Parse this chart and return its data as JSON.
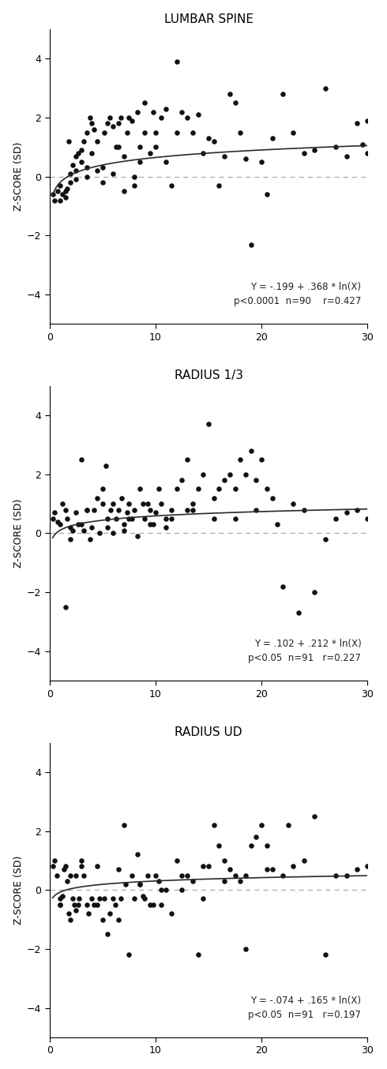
{
  "panels": [
    {
      "title": "LUMBAR SPINE",
      "equation": "Y = -.199 + .368 * ln(X)",
      "stats_line": "p<0.0001  n=90    r=0.427",
      "a": -0.199,
      "b": 0.368,
      "scatter_x": [
        0.3,
        0.5,
        0.8,
        1.0,
        1.0,
        1.2,
        1.5,
        1.5,
        1.7,
        2.0,
        2.0,
        2.2,
        2.5,
        2.5,
        2.7,
        3.0,
        3.0,
        3.2,
        3.5,
        3.5,
        3.8,
        4.0,
        4.0,
        4.2,
        4.5,
        4.5,
        5.0,
        5.0,
        5.2,
        5.5,
        5.7,
        6.0,
        6.0,
        6.3,
        6.5,
        6.7,
        7.0,
        7.0,
        7.3,
        7.5,
        7.8,
        8.0,
        8.0,
        8.3,
        8.5,
        9.0,
        9.0,
        9.5,
        9.8,
        10.0,
        10.0,
        10.5,
        11.0,
        11.0,
        11.5,
        12.0,
        12.0,
        12.5,
        13.0,
        13.5,
        14.0,
        14.5,
        15.0,
        15.5,
        16.0,
        16.5,
        17.0,
        17.5,
        18.0,
        18.5,
        19.0,
        20.0,
        20.5,
        21.0,
        22.0,
        23.0,
        24.0,
        25.0,
        26.0,
        27.0,
        28.0,
        29.0,
        29.5,
        30.0,
        30.0,
        2.5,
        3.5,
        6.5,
        8.5,
        1.8
      ],
      "scatter_y": [
        -0.6,
        -0.8,
        -0.5,
        -0.8,
        -0.3,
        -0.6,
        -0.7,
        -0.5,
        -0.4,
        -0.2,
        0.1,
        0.4,
        0.2,
        0.7,
        0.8,
        0.5,
        0.9,
        1.2,
        0.3,
        1.5,
        2.0,
        0.8,
        1.8,
        1.6,
        1.2,
        0.2,
        -0.2,
        0.3,
        1.5,
        1.8,
        2.0,
        1.7,
        0.1,
        1.0,
        1.8,
        2.0,
        -0.5,
        0.7,
        1.5,
        2.0,
        1.9,
        0.0,
        -0.3,
        2.2,
        1.0,
        1.5,
        2.5,
        0.8,
        2.2,
        1.5,
        1.0,
        2.0,
        2.3,
        0.5,
        -0.3,
        1.5,
        3.9,
        2.2,
        2.0,
        1.5,
        2.1,
        0.8,
        1.3,
        1.2,
        -0.3,
        0.7,
        2.8,
        2.5,
        1.5,
        0.6,
        -2.3,
        0.5,
        -0.6,
        1.3,
        2.8,
        1.5,
        0.8,
        0.9,
        3.0,
        1.0,
        0.7,
        1.8,
        1.1,
        0.8,
        1.9,
        -0.1,
        0.0,
        1.0,
        0.5,
        1.2
      ]
    },
    {
      "title": "RADIUS 1/3",
      "equation": "Y = .102 + .212 * ln(X)",
      "stats_line": "p<0.05  n=91   r=0.227",
      "a": 0.102,
      "b": 0.212,
      "scatter_x": [
        0.3,
        0.5,
        0.8,
        1.0,
        1.2,
        1.5,
        1.7,
        2.0,
        2.0,
        2.2,
        2.5,
        2.7,
        3.0,
        3.0,
        3.2,
        3.5,
        3.8,
        4.0,
        4.2,
        4.5,
        4.7,
        5.0,
        5.0,
        5.3,
        5.5,
        5.8,
        6.0,
        6.0,
        6.3,
        6.5,
        6.8,
        7.0,
        7.0,
        7.3,
        7.5,
        7.8,
        8.0,
        8.3,
        8.5,
        8.8,
        9.0,
        9.3,
        9.5,
        9.8,
        10.0,
        10.3,
        10.5,
        11.0,
        11.0,
        11.5,
        12.0,
        12.5,
        13.0,
        13.0,
        13.5,
        14.0,
        14.5,
        15.0,
        15.5,
        16.0,
        16.5,
        17.0,
        17.5,
        18.0,
        18.5,
        19.0,
        19.5,
        20.0,
        20.5,
        21.0,
        22.0,
        23.0,
        24.0,
        25.0,
        26.0,
        27.0,
        28.0,
        29.0,
        30.0,
        3.5,
        5.5,
        7.5,
        9.5,
        11.5,
        13.5,
        15.5,
        17.5,
        19.5,
        21.5,
        23.5,
        1.5
      ],
      "scatter_y": [
        0.5,
        0.7,
        0.4,
        0.3,
        1.0,
        0.8,
        0.5,
        0.2,
        -0.2,
        0.1,
        0.7,
        0.3,
        0.3,
        2.5,
        0.1,
        0.8,
        -0.2,
        0.2,
        0.8,
        1.2,
        0.0,
        1.0,
        1.5,
        2.3,
        0.5,
        0.8,
        1.0,
        0.0,
        0.5,
        0.8,
        1.2,
        0.3,
        0.1,
        0.7,
        1.0,
        0.5,
        0.8,
        -0.1,
        1.5,
        1.0,
        0.5,
        1.0,
        0.8,
        0.3,
        0.7,
        1.5,
        1.0,
        0.5,
        0.2,
        0.8,
        1.5,
        1.8,
        0.8,
        2.5,
        1.0,
        1.5,
        2.0,
        3.7,
        1.2,
        1.5,
        1.8,
        2.0,
        1.5,
        2.5,
        2.0,
        2.8,
        1.8,
        2.5,
        1.5,
        1.2,
        -1.8,
        1.0,
        0.8,
        -2.0,
        -0.2,
        0.5,
        0.7,
        0.8,
        0.5,
        0.8,
        0.2,
        0.5,
        0.3,
        0.5,
        0.8,
        0.5,
        0.5,
        0.8,
        0.3,
        -2.7,
        -2.5
      ]
    },
    {
      "title": "RADIUS UD",
      "equation": "Y = -.074 + .165 * ln(X)",
      "stats_line": "p<0.05  n=91   r=0.197",
      "a": -0.074,
      "b": 0.165,
      "scatter_x": [
        0.3,
        0.5,
        0.7,
        1.0,
        1.0,
        1.2,
        1.4,
        1.5,
        1.7,
        1.8,
        2.0,
        2.0,
        2.2,
        2.3,
        2.5,
        2.7,
        2.8,
        3.0,
        3.0,
        3.2,
        3.5,
        3.7,
        4.0,
        4.2,
        4.5,
        4.7,
        5.0,
        5.2,
        5.5,
        5.7,
        6.0,
        6.2,
        6.5,
        6.7,
        7.0,
        7.2,
        7.5,
        7.8,
        8.0,
        8.3,
        8.5,
        8.8,
        9.0,
        9.3,
        9.5,
        9.8,
        10.0,
        10.3,
        10.5,
        11.0,
        11.5,
        12.0,
        12.5,
        13.0,
        13.5,
        14.0,
        14.5,
        15.0,
        15.5,
        16.0,
        16.5,
        17.0,
        17.5,
        18.0,
        18.5,
        19.0,
        19.5,
        20.0,
        20.5,
        21.0,
        22.0,
        23.0,
        24.0,
        25.0,
        26.0,
        27.0,
        28.0,
        29.0,
        30.0,
        2.5,
        4.5,
        6.5,
        8.5,
        10.5,
        12.5,
        14.5,
        16.5,
        18.5,
        20.5,
        22.5,
        1.0
      ],
      "scatter_y": [
        0.8,
        1.0,
        0.5,
        -0.5,
        -0.3,
        -0.2,
        0.7,
        0.8,
        0.3,
        -0.8,
        -1.0,
        0.5,
        -0.3,
        -0.5,
        -0.7,
        -0.5,
        -0.3,
        1.0,
        0.8,
        0.5,
        -0.5,
        -0.8,
        -0.3,
        -0.5,
        -0.5,
        -0.3,
        -1.0,
        -0.3,
        -1.5,
        -0.8,
        -0.3,
        -0.5,
        -1.0,
        -0.3,
        2.2,
        0.2,
        -2.2,
        0.5,
        -0.3,
        1.2,
        0.2,
        -0.2,
        -0.3,
        0.5,
        -0.5,
        -0.5,
        0.5,
        0.3,
        -0.5,
        0.0,
        -0.8,
        1.0,
        0.0,
        0.5,
        0.3,
        -2.2,
        -0.3,
        0.8,
        2.2,
        1.5,
        1.0,
        0.7,
        0.5,
        0.3,
        -2.0,
        1.5,
        1.8,
        2.2,
        1.5,
        0.7,
        0.5,
        0.8,
        1.0,
        2.5,
        -2.2,
        0.5,
        0.5,
        0.7,
        0.8,
        0.5,
        0.8,
        0.7,
        0.2,
        0.0,
        0.5,
        0.8,
        0.3,
        0.5,
        0.7,
        2.2,
        -0.5
      ]
    }
  ],
  "xlim": [
    0,
    30
  ],
  "ylim": [
    -5,
    5
  ],
  "yticks": [
    -4,
    -2,
    0,
    2,
    4
  ],
  "xticks": [
    0,
    10,
    20,
    30
  ],
  "ylabel": "Z-SCORE (SD)",
  "dot_color": "#111111",
  "dot_size": 22,
  "line_color": "#2a2a2a",
  "dashed_color": "#aaaaaa",
  "bg_color": "#ffffff",
  "title_fontsize": 11,
  "label_fontsize": 9,
  "tick_fontsize": 9,
  "annot_fontsize": 8.5
}
